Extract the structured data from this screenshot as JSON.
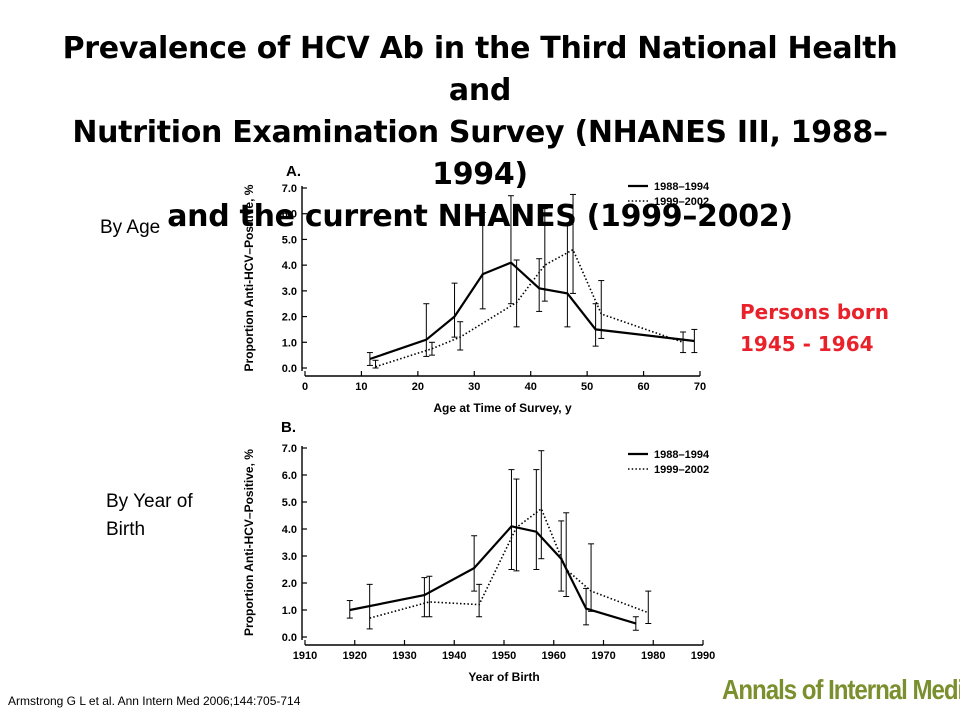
{
  "slide": {
    "title_lines": [
      "Prevalence of HCV Ab in the Third National Health and",
      "Nutrition Examination Survey (NHANES III, 1988–1994)",
      "and the current NHANES (1999–2002)"
    ],
    "label_by_age": "By Age",
    "label_by_birth_lines": [
      "By Year of",
      "Birth"
    ],
    "callout_lines": [
      "Persons born",
      "1945 - 1964"
    ],
    "callout_color": "#e8212a",
    "citation": "Armstrong G L et al. Ann Intern Med 2006;144:705-714",
    "logo_text": "Annals of Internal Medicine",
    "logo_color": "#7a8f2e"
  },
  "chart_data": [
    {
      "type": "line",
      "panel": "A.",
      "xlabel": "Age at Time of Survey, y",
      "ylabel": "Proportion Anti-HCV–Positive, %",
      "xlim": [
        0,
        70
      ],
      "ylim": [
        0,
        7
      ],
      "x_ticks": [
        "0",
        "10",
        "20",
        "30",
        "40",
        "50",
        "60",
        "70"
      ],
      "y_ticks": [
        "0.0",
        "1.0",
        "2.0",
        "3.0",
        "4.0",
        "5.0",
        "6.0",
        "7.0"
      ],
      "legend_position": "top-right",
      "series": [
        {
          "name": "1988–1994",
          "style": "solid",
          "points": [
            {
              "x": 11.5,
              "y": 0.35,
              "lo": 0.1,
              "hi": 0.6
            },
            {
              "x": 21.5,
              "y": 1.1,
              "lo": 0.45,
              "hi": 2.5
            },
            {
              "x": 26.5,
              "y": 2.0,
              "lo": 1.2,
              "hi": 3.3
            },
            {
              "x": 31.5,
              "y": 3.65,
              "lo": 2.3,
              "hi": 6.05
            },
            {
              "x": 36.5,
              "y": 4.1,
              "lo": 2.5,
              "hi": 6.7
            },
            {
              "x": 41.5,
              "y": 3.1,
              "lo": 2.2,
              "hi": 4.25
            },
            {
              "x": 46.5,
              "y": 2.9,
              "lo": 1.6,
              "hi": 5.6
            },
            {
              "x": 51.5,
              "y": 1.5,
              "lo": 0.85,
              "hi": 2.5
            },
            {
              "x": 69,
              "y": 1.05,
              "lo": 0.6,
              "hi": 1.5
            }
          ]
        },
        {
          "name": "1999–2002",
          "style": "dotted",
          "points": [
            {
              "x": 12.5,
              "y": 0.05,
              "lo": 0.0,
              "hi": 0.3
            },
            {
              "x": 22.5,
              "y": 0.75,
              "lo": 0.5,
              "hi": 1.0
            },
            {
              "x": 27.5,
              "y": 1.2,
              "lo": 0.7,
              "hi": 1.8
            },
            {
              "x": 37.5,
              "y": 2.55,
              "lo": 1.6,
              "hi": 4.2
            },
            {
              "x": 42.5,
              "y": 4.0,
              "lo": 2.6,
              "hi": 6.2
            },
            {
              "x": 47.5,
              "y": 4.6,
              "lo": 2.9,
              "hi": 6.75
            },
            {
              "x": 52.5,
              "y": 2.1,
              "lo": 1.15,
              "hi": 3.4
            },
            {
              "x": 67,
              "y": 1.0,
              "lo": 0.6,
              "hi": 1.4
            }
          ]
        }
      ]
    },
    {
      "type": "line",
      "panel": "B.",
      "xlabel": "Year of Birth",
      "ylabel": "Proportion Anti-HCV–Positive, %",
      "xlim": [
        1910,
        1990
      ],
      "ylim": [
        0,
        7
      ],
      "x_ticks": [
        "1910",
        "1920",
        "1930",
        "1940",
        "1950",
        "1960",
        "1970",
        "1980",
        "1990"
      ],
      "y_ticks": [
        "0.0",
        "1.0",
        "2.0",
        "3.0",
        "4.0",
        "5.0",
        "6.0",
        "7.0"
      ],
      "legend_position": "top-right",
      "series": [
        {
          "name": "1988–1994",
          "style": "solid",
          "points": [
            {
              "x": 1919,
              "y": 1.0,
              "lo": 0.7,
              "hi": 1.35
            },
            {
              "x": 1934,
              "y": 1.55,
              "lo": 0.75,
              "hi": 2.2
            },
            {
              "x": 1944,
              "y": 2.55,
              "lo": 1.7,
              "hi": 3.75
            },
            {
              "x": 1951.5,
              "y": 4.1,
              "lo": 2.5,
              "hi": 6.2
            },
            {
              "x": 1956.5,
              "y": 3.9,
              "lo": 2.5,
              "hi": 6.2
            },
            {
              "x": 1961.5,
              "y": 2.9,
              "lo": 1.7,
              "hi": 4.3
            },
            {
              "x": 1966.5,
              "y": 1.05,
              "lo": 0.45,
              "hi": 1.8
            },
            {
              "x": 1976.5,
              "y": 0.5,
              "lo": 0.25,
              "hi": 0.75
            }
          ]
        },
        {
          "name": "1999–2002",
          "style": "dotted",
          "points": [
            {
              "x": 1923,
              "y": 0.7,
              "lo": 0.3,
              "hi": 1.95
            },
            {
              "x": 1935,
              "y": 1.3,
              "lo": 0.75,
              "hi": 2.25
            },
            {
              "x": 1945,
              "y": 1.2,
              "lo": 0.75,
              "hi": 1.95
            },
            {
              "x": 1952.5,
              "y": 4.05,
              "lo": 2.45,
              "hi": 5.85
            },
            {
              "x": 1957.5,
              "y": 4.75,
              "lo": 2.9,
              "hi": 6.9
            },
            {
              "x": 1962.5,
              "y": 2.5,
              "lo": 1.5,
              "hi": 4.6
            },
            {
              "x": 1967.5,
              "y": 1.7,
              "lo": 0.95,
              "hi": 3.45
            },
            {
              "x": 1979,
              "y": 0.9,
              "lo": 0.5,
              "hi": 1.7
            }
          ]
        }
      ]
    }
  ]
}
